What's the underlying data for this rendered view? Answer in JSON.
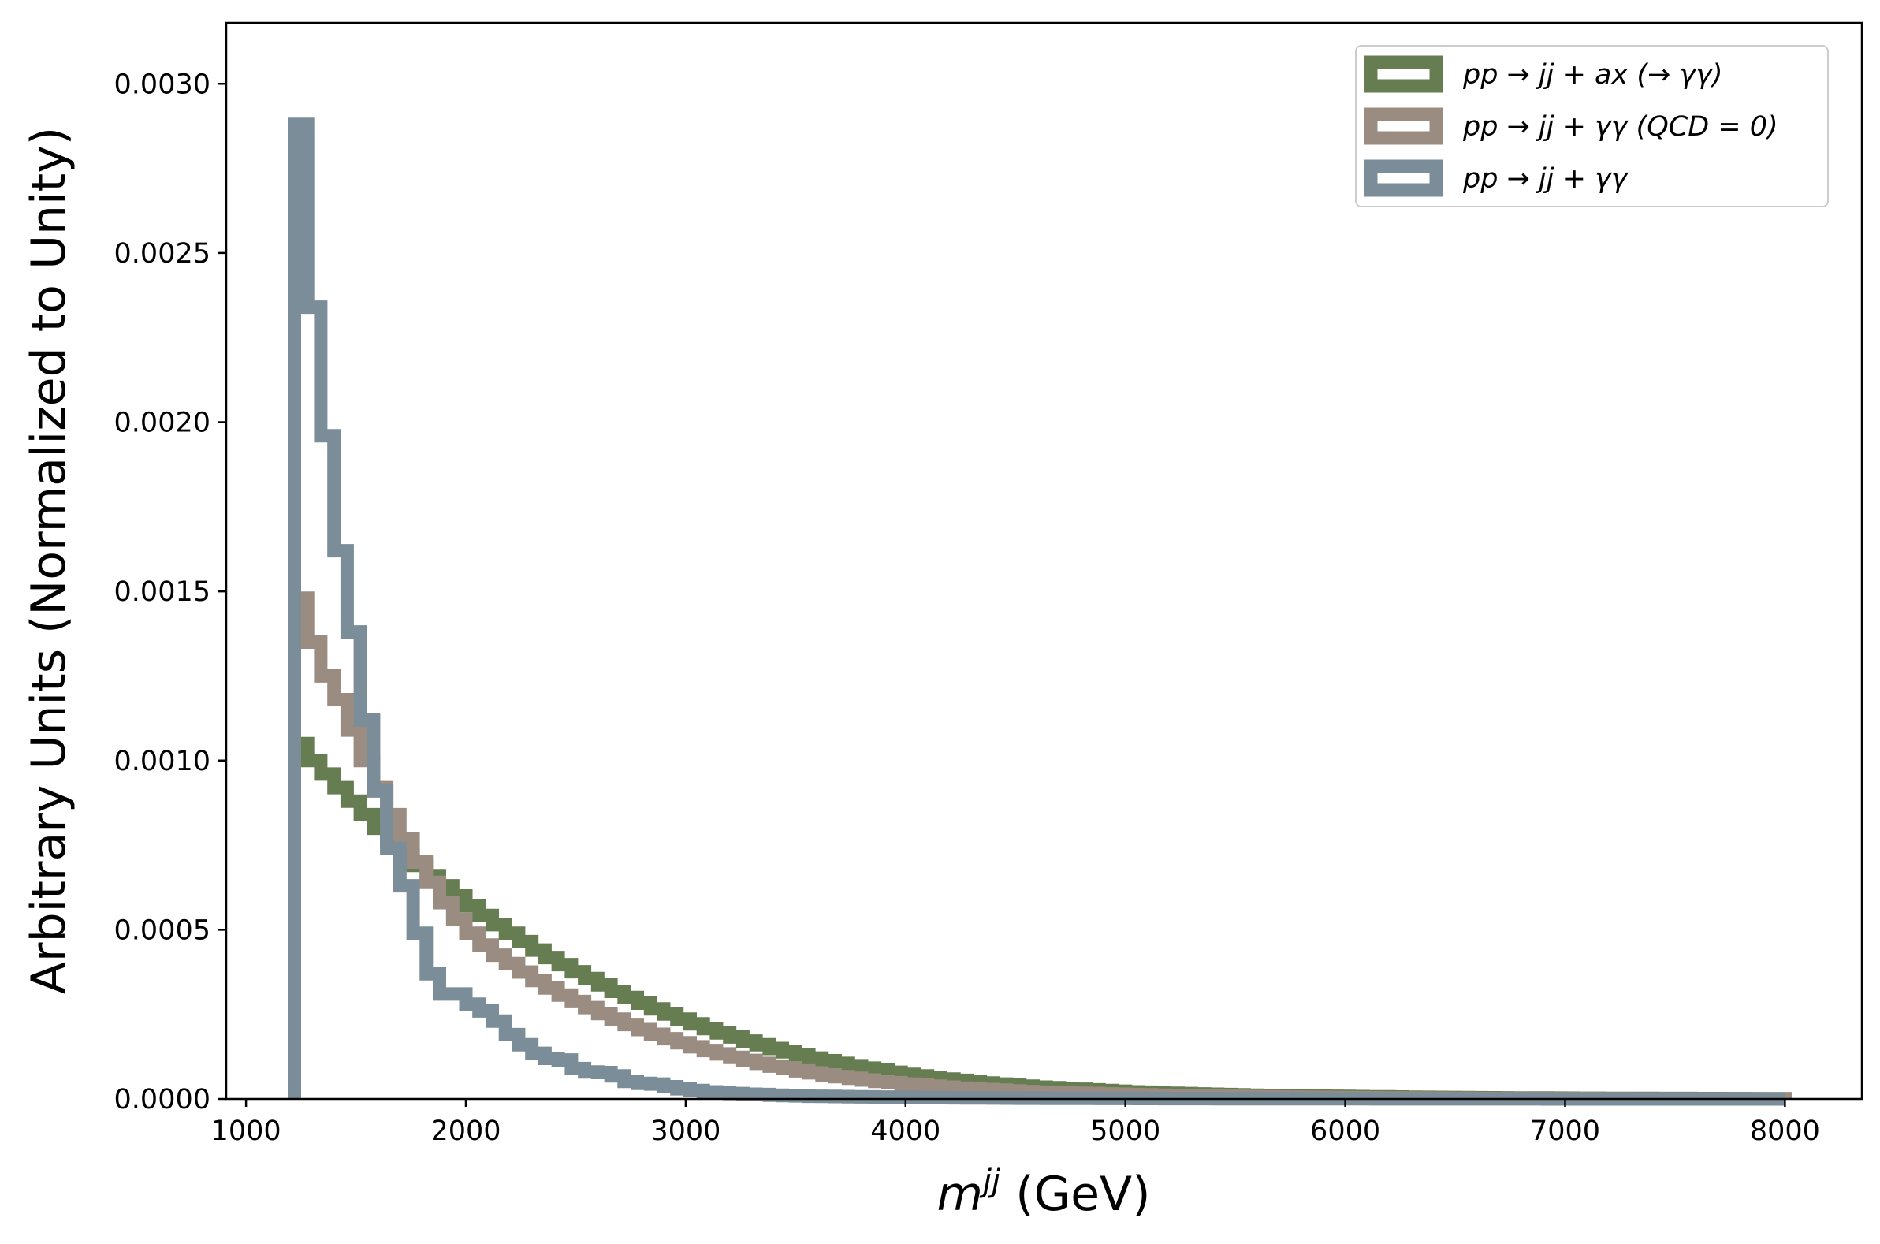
{
  "chart_data": {
    "type": "line",
    "drawstyle": "step",
    "xlabel": {
      "base": "m",
      "sup": "jj",
      "unit": " (GeV)"
    },
    "ylabel": "Arbitrary Units (Normalized to Unity)",
    "xlim": [
      910,
      8350
    ],
    "ylim": [
      0,
      0.00318
    ],
    "xticks": [
      1000,
      2000,
      3000,
      4000,
      5000,
      6000,
      7000,
      8000
    ],
    "xtick_labels": [
      "1000",
      "2000",
      "3000",
      "4000",
      "5000",
      "6000",
      "7000",
      "8000"
    ],
    "yticks": [
      0,
      0.0005,
      0.001,
      0.0015,
      0.002,
      0.0025,
      0.003
    ],
    "ytick_labels": [
      "0.0000",
      "0.0005",
      "0.0010",
      "0.0015",
      "0.0020",
      "0.0025",
      "0.0030"
    ],
    "grid": false,
    "legend_position": "top-right",
    "bin_edges": [
      1220,
      1280,
      1340,
      1400,
      1460,
      1520,
      1580,
      1640,
      1700,
      1760,
      1820,
      1880,
      1940,
      2000,
      2060,
      2120,
      2180,
      2240,
      2300,
      2360,
      2420,
      2480,
      2540,
      2600,
      2660,
      2720,
      2780,
      2840,
      2900,
      2960,
      3020,
      3080,
      3140,
      3200,
      3260,
      3320,
      3380,
      3440,
      3500,
      3560,
      3620,
      3680,
      3740,
      3800,
      3860,
      3920,
      3980,
      4040,
      4100,
      4160,
      4220,
      4280,
      4340,
      4400,
      4460,
      4520,
      4580,
      4640,
      4700,
      4760,
      4820,
      4880,
      4940,
      5000,
      5060,
      5120,
      5180,
      5240,
      5300,
      5360,
      5420,
      5480,
      5540,
      5600,
      5660,
      5720,
      5780,
      5840,
      5900,
      5960,
      6020,
      6080,
      6140,
      6200,
      6260,
      6320,
      6380,
      6440,
      6500,
      6560,
      6620,
      6680,
      6740,
      6800,
      6860,
      6920,
      6980,
      7040,
      7100,
      7160,
      7220,
      7280,
      7340,
      7400,
      7460,
      7520,
      7580,
      7640,
      7700,
      7760,
      7820,
      7880,
      7940,
      8000
    ],
    "series": [
      {
        "name": "pp → jj + ax (→ γγ)",
        "color": "#667d52",
        "values": [
          0.00105,
          0.001,
          0.00096,
          0.00092,
          0.00088,
          0.00084,
          0.0008,
          0.00076,
          0.00072,
          0.00069,
          0.00066,
          0.00063,
          0.0006,
          0.00057,
          0.000542,
          0.000515,
          0.00049,
          0.000465,
          0.00044,
          0.000418,
          0.000397,
          0.000376,
          0.000356,
          0.000337,
          0.000318,
          0.0003,
          0.000283,
          0.000266,
          0.000251,
          0.000236,
          0.000222,
          0.000208,
          0.000195,
          0.000183,
          0.000171,
          0.00016,
          0.000149,
          0.000139,
          0.00013,
          0.000121,
          0.000113,
          0.000105,
          9.8e-05,
          9.1e-05,
          8.5e-05,
          7.9e-05,
          7.3e-05,
          6.8e-05,
          6.3e-05,
          5.9e-05,
          5.5e-05,
          5.1e-05,
          4.7e-05,
          4.4e-05,
          4.1e-05,
          3.8e-05,
          3.5e-05,
          3.3e-05,
          3.1e-05,
          2.9e-05,
          2.7e-05,
          2.5e-05,
          2.3e-05,
          2.1e-05,
          2e-05,
          1.8e-05,
          1.7e-05,
          1.6e-05,
          1.5e-05,
          1.4e-05,
          1.3e-05,
          1.2e-05,
          1.1e-05,
          1.05e-05,
          1e-05,
          9.5e-06,
          9e-06,
          8.5e-06,
          8e-06,
          7.5e-06,
          7e-06,
          6.6e-06,
          6.2e-06,
          5.8e-06,
          5.4e-06,
          5e-06,
          4.7e-06,
          4.4e-06,
          4.1e-06,
          3.8e-06,
          3.5e-06,
          3.3e-06,
          3.1e-06,
          2.9e-06,
          2.7e-06,
          2.5e-06,
          2.3e-06,
          2.1e-06,
          2e-06,
          1.9e-06,
          1.8e-06,
          1.7e-06,
          1.6e-06,
          1.5e-06,
          1.4e-06,
          1.3e-06,
          1.2e-06,
          1.1e-06,
          1e-06,
          9e-07,
          8e-07,
          7e-07,
          6e-07
        ]
      },
      {
        "name": "pp → jj + γγ (QCD = 0)",
        "color": "#9a8c80",
        "values": [
          0.00148,
          0.00135,
          0.00125,
          0.00118,
          0.00109,
          0.001,
          0.00092,
          0.00084,
          0.00077,
          0.0007,
          0.00064,
          0.00058,
          0.00053,
          0.00049,
          0.000455,
          0.000425,
          0.0004,
          0.000375,
          0.00035,
          0.000328,
          0.000307,
          0.000288,
          0.00027,
          0.000252,
          0.000236,
          0.00022,
          0.000205,
          0.000191,
          0.000178,
          0.000166,
          0.000154,
          0.000143,
          0.000133,
          0.000123,
          0.000114,
          0.000105,
          9.7e-05,
          9e-05,
          8.3e-05,
          7.7e-05,
          7.1e-05,
          6.6e-05,
          6.1e-05,
          5.6e-05,
          5.2e-05,
          4.8e-05,
          4.4e-05,
          4.1e-05,
          3.8e-05,
          3.5e-05,
          3.2e-05,
          3e-05,
          2.8e-05,
          2.6e-05,
          2.4e-05,
          2.2e-05,
          2e-05,
          1.9e-05,
          1.8e-05,
          1.7e-05,
          1.6e-05,
          1.5e-05,
          1.4e-05,
          1.3e-05,
          1.2e-05,
          1.1e-05,
          1e-05,
          9.5e-06,
          9e-06,
          8.5e-06,
          8e-06,
          7.5e-06,
          7e-06,
          6.5e-06,
          6e-06,
          5.6e-06,
          5.2e-06,
          4.8e-06,
          4.4e-06,
          4e-06,
          3.7e-06,
          3.4e-06,
          3.1e-06,
          2.9e-06,
          2.7e-06,
          2.5e-06,
          2.3e-06,
          2.1e-06,
          2e-06,
          1.9e-06,
          1.8e-06,
          1.7e-06,
          1.6e-06,
          1.5e-06,
          1.4e-06,
          1.3e-06,
          1.2e-06,
          1.1e-06,
          1e-06,
          9e-07,
          8.5e-07,
          8e-07,
          7.5e-07,
          7e-07,
          6.5e-07,
          6e-07,
          5.5e-07,
          5e-07,
          4.5e-07,
          4e-07,
          3.5e-07,
          3e-07,
          2.5e-07
        ]
      },
      {
        "name": "pp → jj + γγ",
        "color": "#7b8d98",
        "values": [
          0.00288,
          0.00234,
          0.00196,
          0.00162,
          0.00138,
          0.00112,
          0.00091,
          0.00074,
          0.00063,
          0.00049,
          0.00037,
          0.00031,
          0.00031,
          0.00028,
          0.00026,
          0.00023,
          0.00019,
          0.00016,
          0.000135,
          0.00012,
          0.000115,
          9e-05,
          8e-05,
          7.8e-05,
          6.8e-05,
          5.2e-05,
          4.6e-05,
          4.4e-05,
          3.6e-05,
          3e-05,
          2.5e-05,
          2.1e-05,
          1.8e-05,
          1.6e-05,
          1.4e-05,
          1.3e-05,
          1.1e-05,
          1e-05,
          9e-06,
          8e-06,
          7.5e-06,
          7e-06,
          6.5e-06,
          6e-06,
          5.5e-06,
          5e-06,
          4.6e-06,
          4.2e-06,
          3.9e-06,
          3.6e-06,
          3.3e-06,
          3e-06,
          2.8e-06,
          2.6e-06,
          2.4e-06,
          2.2e-06,
          2e-06,
          1.9e-06,
          1.8e-06,
          1.7e-06,
          1.6e-06,
          1.5e-06,
          1.4e-06,
          1.3e-06,
          1.2e-06,
          1.1e-06,
          1e-06,
          9.5e-07,
          9e-07,
          8.5e-07,
          8e-07,
          7.5e-07,
          7e-07,
          6.5e-07,
          6e-07,
          5.5e-07,
          5e-07,
          4.7e-07,
          4.4e-07,
          4.1e-07,
          3.8e-07,
          3.5e-07,
          3.2e-07,
          3e-07,
          2.8e-07,
          2.6e-07,
          2.4e-07,
          2.2e-07,
          2e-07,
          1.8e-07,
          1.6e-07,
          1.5e-07,
          1.4e-07,
          1.3e-07,
          1.2e-07,
          1.1e-07,
          1e-07,
          9e-08,
          8e-08,
          7e-08,
          6e-08,
          5e-08,
          4e-08,
          3e-08,
          2e-08,
          1e-08,
          1e-08,
          1e-08,
          1e-08,
          1e-08,
          1e-08,
          1e-08,
          1e-08
        ]
      }
    ]
  }
}
